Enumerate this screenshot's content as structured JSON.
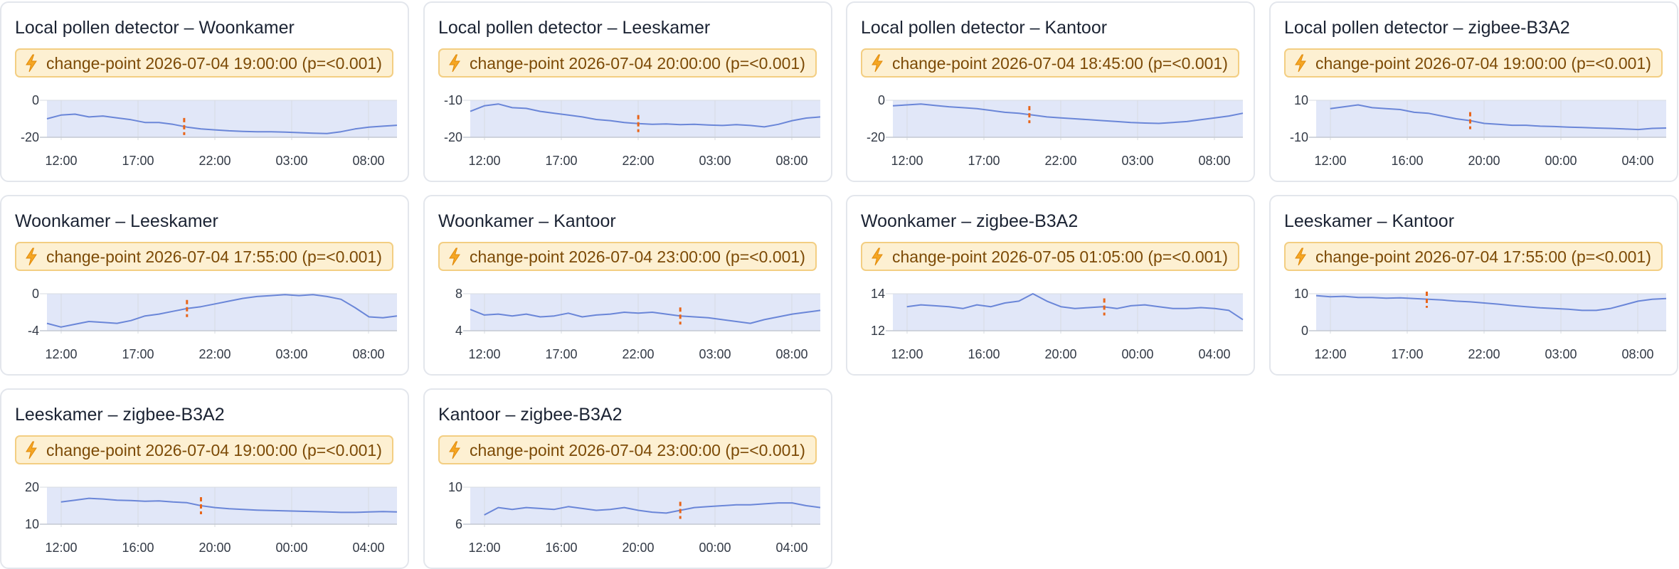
{
  "colors": {
    "line": "#6a86d8",
    "fill": "#e1e7f8",
    "grid": "#d7dbe2",
    "axis": "#c4c9d2",
    "marker": "#e8651a",
    "badge_bg": "#fdf0d2",
    "badge_border": "#f3ce82",
    "badge_text": "#7c4a06"
  },
  "icon": "lightning-bolt-icon",
  "cards": [
    {
      "title": "Local pollen detector – Woonkamer",
      "changepoint": "change-point 2026-07-04 19:00:00 (p=<0.001)"
    },
    {
      "title": "Local pollen detector – Leeskamer",
      "changepoint": "change-point 2026-07-04 20:00:00 (p=<0.001)"
    },
    {
      "title": "Local pollen detector – Kantoor",
      "changepoint": "change-point 2026-07-04 18:45:00 (p=<0.001)"
    },
    {
      "title": "Local pollen detector – zigbee-B3A2",
      "changepoint": "change-point 2026-07-04 19:00:00 (p=<0.001)"
    },
    {
      "title": "Woonkamer – Leeskamer",
      "changepoint": "change-point 2026-07-04 17:55:00 (p=<0.001)"
    },
    {
      "title": "Woonkamer – Kantoor",
      "changepoint": "change-point 2026-07-04 23:00:00 (p=<0.001)"
    },
    {
      "title": "Woonkamer – zigbee-B3A2",
      "changepoint": "change-point 2026-07-05 01:05:00 (p=<0.001)"
    },
    {
      "title": "Leeskamer – Kantoor",
      "changepoint": "change-point 2026-07-04 17:55:00 (p=<0.001)"
    },
    {
      "title": "Leeskamer – zigbee-B3A2",
      "changepoint": "change-point 2026-07-04 19:00:00 (p=<0.001)"
    },
    {
      "title": "Kantoor – zigbee-B3A2",
      "changepoint": "change-point 2026-07-04 23:00:00 (p=<0.001)"
    }
  ],
  "chart_data": [
    {
      "type": "area",
      "title": "Local pollen detector – Woonkamer",
      "x_ticks": [
        "12:00",
        "17:00",
        "22:00",
        "03:00",
        "08:00"
      ],
      "y_ticks": [
        "0",
        "-20"
      ],
      "ylim": [
        -20,
        0
      ],
      "changepoint_x": 19.8,
      "x": [
        10,
        11,
        12,
        13,
        14,
        15,
        16,
        17,
        18,
        19,
        20,
        21,
        22,
        23,
        24,
        25,
        26,
        27,
        28,
        29,
        30,
        31,
        32,
        33,
        34,
        35
      ],
      "y": [
        -10,
        -8,
        -7.5,
        -9,
        -8.5,
        -9.5,
        -10.5,
        -12,
        -12,
        -13,
        -14.5,
        -15.5,
        -16,
        -16.5,
        -16.8,
        -17,
        -17,
        -17.2,
        -17.5,
        -17.8,
        -18,
        -17,
        -15.5,
        -14.5,
        -14,
        -13.5
      ]
    },
    {
      "type": "area",
      "title": "Local pollen detector – Leeskamer",
      "x_ticks": [
        "12:00",
        "17:00",
        "22:00",
        "03:00",
        "08:00"
      ],
      "y_ticks": [
        "-10",
        "-20"
      ],
      "ylim": [
        -20,
        -10
      ],
      "changepoint_x": 22,
      "x": [
        10,
        11,
        12,
        13,
        14,
        15,
        16,
        17,
        18,
        19,
        20,
        21,
        22,
        23,
        24,
        25,
        26,
        27,
        28,
        29,
        30,
        31,
        32,
        33,
        34,
        35
      ],
      "y": [
        -13,
        -11.5,
        -11,
        -12,
        -12.2,
        -13,
        -13.5,
        -14,
        -14.5,
        -15.2,
        -15.5,
        -16,
        -16.3,
        -16.5,
        -16.4,
        -16.6,
        -16.5,
        -16.7,
        -16.8,
        -16.6,
        -16.8,
        -17.2,
        -16.5,
        -15.5,
        -14.8,
        -14.5
      ]
    },
    {
      "type": "area",
      "title": "Local pollen detector – Kantoor",
      "x_ticks": [
        "12:00",
        "17:00",
        "22:00",
        "03:00",
        "08:00"
      ],
      "y_ticks": [
        "0",
        "-20"
      ],
      "ylim": [
        -20,
        0
      ],
      "changepoint_x": 19.75,
      "x": [
        10,
        11,
        12,
        13,
        14,
        15,
        16,
        17,
        18,
        19,
        20,
        21,
        22,
        23,
        24,
        25,
        26,
        27,
        28,
        29,
        30,
        31,
        32,
        33,
        34,
        35
      ],
      "y": [
        -3,
        -2.5,
        -2,
        -2.8,
        -3.5,
        -4,
        -4.5,
        -5.5,
        -6.5,
        -7,
        -8,
        -9,
        -9.5,
        -10,
        -10.5,
        -11,
        -11.5,
        -12,
        -12.3,
        -12.5,
        -12,
        -11.5,
        -10.5,
        -9.5,
        -8.5,
        -7
      ]
    },
    {
      "type": "area",
      "title": "Local pollen detector – zigbee-B3A2",
      "x_ticks": [
        "12:00",
        "16:00",
        "20:00",
        "00:00",
        "04:00"
      ],
      "y_ticks": [
        "10",
        "-10"
      ],
      "ylim": [
        -10,
        10
      ],
      "changepoint_x": 21,
      "x": [
        11,
        12,
        13,
        14,
        15,
        16,
        17,
        18,
        19,
        20,
        21,
        22,
        23,
        24,
        25,
        26,
        27,
        28,
        29,
        30,
        31,
        32,
        33,
        34,
        35
      ],
      "y": [
        5.5,
        6.5,
        7.5,
        6,
        5.5,
        5,
        3.5,
        3,
        1.5,
        0,
        -1,
        -2.5,
        -3,
        -3.5,
        -3.5,
        -4,
        -4.2,
        -4.5,
        -4.7,
        -5,
        -5.2,
        -5.5,
        -5.8,
        -5.2,
        -5
      ]
    },
    {
      "type": "area",
      "title": "Woonkamer – Leeskamer",
      "x_ticks": [
        "12:00",
        "17:00",
        "22:00",
        "03:00",
        "08:00"
      ],
      "y_ticks": [
        "0",
        "-4"
      ],
      "ylim": [
        -4,
        0
      ],
      "changepoint_x": 20,
      "x": [
        10,
        11,
        12,
        13,
        14,
        15,
        16,
        17,
        18,
        19,
        20,
        21,
        22,
        23,
        24,
        25,
        26,
        27,
        28,
        29,
        30,
        31,
        32,
        33,
        34,
        35
      ],
      "y": [
        -3.2,
        -3.6,
        -3.3,
        -3,
        -3.1,
        -3.2,
        -2.9,
        -2.4,
        -2.2,
        -1.9,
        -1.6,
        -1.4,
        -1.1,
        -0.8,
        -0.5,
        -0.3,
        -0.2,
        -0.1,
        -0.2,
        -0.1,
        -0.3,
        -0.6,
        -1.5,
        -2.5,
        -2.6,
        -2.4
      ]
    },
    {
      "type": "area",
      "title": "Woonkamer – Kantoor",
      "x_ticks": [
        "12:00",
        "17:00",
        "22:00",
        "03:00",
        "08:00"
      ],
      "y_ticks": [
        "8",
        "4"
      ],
      "ylim": [
        4,
        8
      ],
      "changepoint_x": 25,
      "x": [
        10,
        11,
        12,
        13,
        14,
        15,
        16,
        17,
        18,
        19,
        20,
        21,
        22,
        23,
        24,
        25,
        26,
        27,
        28,
        29,
        30,
        31,
        32,
        33,
        34,
        35
      ],
      "y": [
        6.3,
        5.7,
        5.8,
        5.6,
        5.8,
        5.5,
        5.6,
        5.9,
        5.5,
        5.7,
        5.8,
        6,
        5.9,
        6,
        5.8,
        5.6,
        5.5,
        5.4,
        5.2,
        5,
        4.8,
        5.2,
        5.5,
        5.8,
        6,
        6.2
      ]
    },
    {
      "type": "area",
      "title": "Woonkamer – zigbee-B3A2",
      "x_ticks": [
        "12:00",
        "16:00",
        "20:00",
        "00:00",
        "04:00"
      ],
      "y_ticks": [
        "14",
        "12"
      ],
      "ylim": [
        12,
        14
      ],
      "changepoint_x": 25.1,
      "x": [
        11,
        12,
        13,
        14,
        15,
        16,
        17,
        18,
        19,
        20,
        21,
        22,
        23,
        24,
        25,
        26,
        27,
        28,
        29,
        30,
        31,
        32,
        33,
        34,
        35
      ],
      "y": [
        13.3,
        13.4,
        13.35,
        13.3,
        13.2,
        13.4,
        13.3,
        13.5,
        13.6,
        14,
        13.6,
        13.3,
        13.2,
        13.25,
        13.3,
        13.2,
        13.35,
        13.4,
        13.3,
        13.2,
        13.2,
        13.25,
        13.2,
        13.1,
        12.6
      ]
    },
    {
      "type": "area",
      "title": "Leeskamer – Kantoor",
      "x_ticks": [
        "12:00",
        "17:00",
        "22:00",
        "03:00",
        "08:00"
      ],
      "y_ticks": [
        "10",
        "0"
      ],
      "ylim": [
        0,
        10
      ],
      "changepoint_x": 17.9,
      "x": [
        10,
        11,
        12,
        13,
        14,
        15,
        16,
        17,
        18,
        19,
        20,
        21,
        22,
        23,
        24,
        25,
        26,
        27,
        28,
        29,
        30,
        31,
        32,
        33,
        34,
        35
      ],
      "y": [
        9.5,
        9.2,
        9.3,
        9,
        9,
        8.8,
        8.9,
        8.7,
        8.5,
        8.3,
        8,
        7.8,
        7.5,
        7.2,
        6.8,
        6.5,
        6.2,
        6,
        5.8,
        5.5,
        5.5,
        6,
        7,
        8,
        8.5,
        8.7
      ]
    },
    {
      "type": "area",
      "title": "Leeskamer – zigbee-B3A2",
      "x_ticks": [
        "12:00",
        "16:00",
        "20:00",
        "00:00",
        "04:00"
      ],
      "y_ticks": [
        "20",
        "10"
      ],
      "ylim": [
        10,
        20
      ],
      "changepoint_x": 21,
      "x": [
        11,
        12,
        13,
        14,
        15,
        16,
        17,
        18,
        19,
        20,
        21,
        22,
        23,
        24,
        25,
        26,
        27,
        28,
        29,
        30,
        31,
        32,
        33,
        34,
        35
      ],
      "y": [
        16,
        16.5,
        17,
        16.8,
        16.5,
        16.4,
        16.2,
        16.3,
        16,
        15.8,
        15,
        14.5,
        14.2,
        14,
        13.8,
        13.7,
        13.6,
        13.5,
        13.4,
        13.3,
        13.2,
        13.2,
        13.3,
        13.4,
        13.3
      ]
    },
    {
      "type": "area",
      "title": "Kantoor – zigbee-B3A2",
      "x_ticks": [
        "12:00",
        "16:00",
        "20:00",
        "00:00",
        "04:00"
      ],
      "y_ticks": [
        "10",
        "6"
      ],
      "ylim": [
        6,
        10
      ],
      "changepoint_x": 25,
      "x": [
        11,
        12,
        13,
        14,
        15,
        16,
        17,
        18,
        19,
        20,
        21,
        22,
        23,
        24,
        25,
        26,
        27,
        28,
        29,
        30,
        31,
        32,
        33,
        34,
        35
      ],
      "y": [
        7,
        7.8,
        7.6,
        7.8,
        7.7,
        7.6,
        7.9,
        7.7,
        7.5,
        7.6,
        7.8,
        7.5,
        7.3,
        7.2,
        7.5,
        7.8,
        7.9,
        8,
        8.1,
        8.1,
        8.2,
        8.3,
        8.3,
        8,
        7.8
      ]
    }
  ]
}
